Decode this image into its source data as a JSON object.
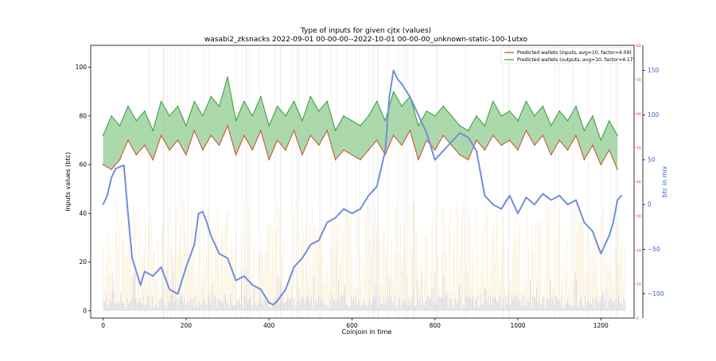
{
  "chart_data": {
    "type": "line",
    "title": "Type of inputs for given cjtx (values)",
    "subtitle": "wasabi2_zksnacks 2022-09-01 00-00-00--2022-10-01 00-00-00_unknown-static-100-1utxo",
    "xlabel": "Coinjoin in time",
    "ylabel": "Inputs values (btc)",
    "y2label": "btc in mix",
    "xlim": [
      -30,
      1280
    ],
    "ylim": [
      -3,
      109
    ],
    "y2lim": [
      -127,
      178
    ],
    "y3lim": [
      0,
      80
    ],
    "xticks": [
      "0",
      "200",
      "400",
      "600",
      "800",
      "1000",
      "1200"
    ],
    "yticks": [
      "0",
      "20",
      "40",
      "60",
      "80",
      "100"
    ],
    "y2ticks": [
      "−100",
      "−50",
      "0",
      "50",
      "100",
      "150"
    ],
    "y3ticks": [
      "0",
      "10",
      "20",
      "30",
      "40",
      "50",
      "60",
      "70",
      "80"
    ],
    "legend_position": "top-right",
    "colors": {
      "inputs": "#c8593b",
      "outputs": "#43a046",
      "fill": "#8fcc8f",
      "mix": "#6f8fdc",
      "bg_bars_blue": "#b7bff2",
      "bg_bars_yellow": "#f7dfa6",
      "right_axis_red": "#e03030",
      "right_axis_blue": "#3a60c8"
    },
    "series": [
      {
        "name": "Predicted wallets (inputs, avg=10, factor=4.09)",
        "axis": "left",
        "x": [
          0,
          20,
          40,
          60,
          80,
          100,
          120,
          140,
          160,
          180,
          200,
          220,
          240,
          260,
          280,
          300,
          320,
          340,
          360,
          380,
          400,
          420,
          440,
          460,
          480,
          500,
          520,
          540,
          560,
          580,
          600,
          620,
          640,
          660,
          680,
          700,
          720,
          740,
          760,
          780,
          800,
          820,
          840,
          860,
          880,
          900,
          920,
          940,
          960,
          980,
          1000,
          1020,
          1040,
          1060,
          1080,
          1100,
          1120,
          1140,
          1160,
          1180,
          1200,
          1220,
          1240
        ],
        "values": [
          60,
          58,
          62,
          70,
          64,
          68,
          62,
          72,
          66,
          70,
          64,
          74,
          66,
          72,
          68,
          76,
          64,
          72,
          66,
          74,
          62,
          70,
          66,
          74,
          64,
          72,
          68,
          74,
          62,
          66,
          64,
          62,
          66,
          70,
          64,
          72,
          68,
          74,
          62,
          70,
          66,
          72,
          68,
          64,
          62,
          70,
          66,
          72,
          68,
          70,
          66,
          74,
          68,
          72,
          64,
          70,
          66,
          72,
          62,
          68,
          60,
          66,
          58
        ]
      },
      {
        "name": "Predicted wallets (outputs, avg=10, factor=4.17)",
        "axis": "left",
        "x": [
          0,
          20,
          40,
          60,
          80,
          100,
          120,
          140,
          160,
          180,
          200,
          220,
          240,
          260,
          280,
          300,
          320,
          340,
          360,
          380,
          400,
          420,
          440,
          460,
          480,
          500,
          520,
          540,
          560,
          580,
          600,
          620,
          640,
          660,
          680,
          700,
          720,
          740,
          760,
          780,
          800,
          820,
          840,
          860,
          880,
          900,
          920,
          940,
          960,
          980,
          1000,
          1020,
          1040,
          1060,
          1080,
          1100,
          1120,
          1140,
          1160,
          1180,
          1200,
          1220,
          1240
        ],
        "values": [
          72,
          80,
          76,
          84,
          78,
          82,
          74,
          86,
          80,
          84,
          76,
          86,
          80,
          88,
          84,
          96,
          78,
          86,
          80,
          88,
          76,
          84,
          80,
          86,
          78,
          88,
          82,
          86,
          74,
          80,
          78,
          76,
          80,
          86,
          78,
          90,
          84,
          88,
          76,
          82,
          80,
          84,
          80,
          76,
          74,
          80,
          76,
          86,
          80,
          82,
          78,
          86,
          80,
          84,
          76,
          82,
          78,
          84,
          74,
          80,
          70,
          78,
          72
        ]
      },
      {
        "name": "btc in mix",
        "axis": "right",
        "x": [
          0,
          10,
          20,
          30,
          40,
          50,
          60,
          70,
          80,
          90,
          100,
          120,
          140,
          160,
          180,
          200,
          220,
          230,
          240,
          250,
          260,
          280,
          300,
          320,
          340,
          360,
          380,
          400,
          410,
          420,
          440,
          460,
          480,
          500,
          520,
          540,
          560,
          580,
          600,
          620,
          640,
          660,
          680,
          690,
          700,
          710,
          720,
          740,
          760,
          780,
          800,
          820,
          840,
          860,
          880,
          900,
          920,
          940,
          960,
          980,
          1000,
          1020,
          1040,
          1060,
          1080,
          1100,
          1120,
          1140,
          1160,
          1180,
          1200,
          1220,
          1230,
          1240,
          1250
        ],
        "values": [
          0,
          10,
          30,
          40,
          42,
          44,
          -10,
          -60,
          -75,
          -90,
          -75,
          -80,
          -70,
          -95,
          -100,
          -70,
          -45,
          -10,
          -8,
          -20,
          -35,
          -55,
          -60,
          -85,
          -80,
          -90,
          -95,
          -110,
          -112,
          -108,
          -95,
          -70,
          -60,
          -45,
          -40,
          -20,
          -15,
          -5,
          -10,
          -5,
          10,
          20,
          60,
          120,
          150,
          140,
          135,
          120,
          100,
          80,
          50,
          60,
          70,
          80,
          75,
          60,
          10,
          0,
          -5,
          10,
          -10,
          8,
          0,
          12,
          5,
          10,
          0,
          5,
          -20,
          -30,
          -55,
          -35,
          -20,
          5,
          10
        ]
      }
    ]
  }
}
